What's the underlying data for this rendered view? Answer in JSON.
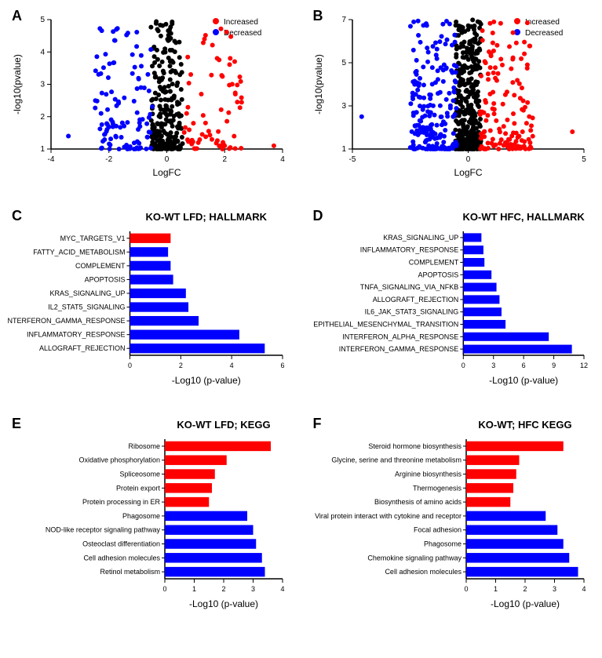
{
  "panels": {
    "A": {
      "label": "A",
      "type": "scatter",
      "xlabel": "LogFC",
      "ylabel": "-log10(pvalue)",
      "xlim": [
        -4,
        4
      ],
      "ylim": [
        1,
        5
      ],
      "xtick_step": 2,
      "ytick_step": 1,
      "marker_size": 3,
      "colors": {
        "increased": "#ff0000",
        "decreased": "#0000ff",
        "ns": "#000000"
      },
      "legend": [
        {
          "label": "Increased",
          "color": "#ff0000"
        },
        {
          "label": "Decreased",
          "color": "#0000ff"
        }
      ],
      "label_fontsize": 12,
      "tick_fontsize": 10
    },
    "B": {
      "label": "B",
      "type": "scatter",
      "xlabel": "LogFC",
      "ylabel": "-log10(pvalue)",
      "xlim": [
        -5,
        5
      ],
      "ylim": [
        1,
        7
      ],
      "xtick_step": 5,
      "ytick_step": 2,
      "marker_size": 3,
      "colors": {
        "increased": "#ff0000",
        "decreased": "#0000ff",
        "ns": "#000000"
      },
      "legend": [
        {
          "label": "Increased",
          "color": "#ff0000"
        },
        {
          "label": "Decreased",
          "color": "#0000ff"
        }
      ],
      "label_fontsize": 12,
      "tick_fontsize": 10
    },
    "C": {
      "label": "C",
      "type": "hbar",
      "title": "KO-WT LFD; HALLMARK",
      "xlabel": "-Log10 (p-value)",
      "xlim": [
        0,
        6
      ],
      "xtick_step": 2,
      "title_fontsize": 13,
      "label_fontsize": 12,
      "tick_fontsize": 9,
      "bar_height": 0.7,
      "categories": [
        "MYC_TARGETS_V1",
        "FATTY_ACID_METABOLISM",
        "COMPLEMENT",
        "APOPTOSIS",
        "KRAS_SIGNALING_UP",
        "IL2_STAT5_SIGNALING",
        "INTERFERON_GAMMA_RESPONSE",
        "INFLAMMATORY_RESPONSE",
        "ALLOGRAFT_REJECTION"
      ],
      "values": [
        1.6,
        1.5,
        1.6,
        1.7,
        2.2,
        2.3,
        2.7,
        4.3,
        5.3
      ],
      "colors": [
        "#ff0000",
        "#0000ff",
        "#0000ff",
        "#0000ff",
        "#0000ff",
        "#0000ff",
        "#0000ff",
        "#0000ff",
        "#0000ff"
      ]
    },
    "D": {
      "label": "D",
      "type": "hbar",
      "title": "KO-WT HFC, HALLMARK",
      "xlabel": "-Log10 (p-value)",
      "xlim": [
        0,
        12
      ],
      "xtick_step": 3,
      "title_fontsize": 13,
      "label_fontsize": 12,
      "tick_fontsize": 9,
      "bar_height": 0.7,
      "categories": [
        "KRAS_SIGNALING_UP",
        "INFLAMMATORY_RESPONSE",
        "COMPLEMENT",
        "APOPTOSIS",
        "TNFA_SIGNALING_VIA_NFKB",
        "ALLOGRAFT_REJECTION",
        "IL6_JAK_STAT3_SIGNALING",
        "EPITHELIAL_MESENCHYMAL_TRANSITION",
        "INTERFERON_ALPHA_RESPONSE",
        "INTERFERON_GAMMA_RESPONSE"
      ],
      "values": [
        1.8,
        2.0,
        2.1,
        2.8,
        3.3,
        3.6,
        3.8,
        4.2,
        8.5,
        10.8
      ],
      "colors": [
        "#0000ff",
        "#0000ff",
        "#0000ff",
        "#0000ff",
        "#0000ff",
        "#0000ff",
        "#0000ff",
        "#0000ff",
        "#0000ff",
        "#0000ff"
      ]
    },
    "E": {
      "label": "E",
      "type": "hbar",
      "title": "KO-WT LFD; KEGG",
      "xlabel": "-Log10 (p-value)",
      "xlim": [
        0,
        4
      ],
      "xtick_step": 1,
      "title_fontsize": 13,
      "label_fontsize": 12,
      "tick_fontsize": 9,
      "bar_height": 0.7,
      "categories": [
        "Ribosome",
        "Oxidative phosphorylation",
        "Spliceosome",
        "Protein export",
        "Protein processing in ER",
        "Phagosome",
        "NOD-like receptor signaling pathway",
        "Osteoclast differentiation",
        "Cell adhesion molecules",
        "Retinol metabolism"
      ],
      "values": [
        3.6,
        2.1,
        1.7,
        1.6,
        1.5,
        2.8,
        3.0,
        3.1,
        3.3,
        3.4
      ],
      "colors": [
        "#ff0000",
        "#ff0000",
        "#ff0000",
        "#ff0000",
        "#ff0000",
        "#0000ff",
        "#0000ff",
        "#0000ff",
        "#0000ff",
        "#0000ff"
      ]
    },
    "F": {
      "label": "F",
      "type": "hbar",
      "title": "KO-WT; HFC KEGG",
      "xlabel": "-Log10 (p-value)",
      "xlim": [
        0,
        4
      ],
      "xtick_step": 1,
      "title_fontsize": 13,
      "label_fontsize": 12,
      "tick_fontsize": 9,
      "bar_height": 0.7,
      "categories": [
        "Steroid hormone biosynthesis",
        "Glycine, serine and threonine metabolism",
        "Arginine biosynthesis",
        "Thermogenesis",
        "Biosynthesis of amino acids",
        "Viral protein interact with cytokine and receptor",
        "Focal adhesion",
        "Phagosome",
        "Chemokine signaling pathway",
        "Cell adhesion molecules"
      ],
      "values": [
        3.3,
        1.8,
        1.7,
        1.6,
        1.5,
        2.7,
        3.1,
        3.3,
        3.5,
        3.8
      ],
      "colors": [
        "#ff0000",
        "#ff0000",
        "#ff0000",
        "#ff0000",
        "#ff0000",
        "#0000ff",
        "#0000ff",
        "#0000ff",
        "#0000ff",
        "#0000ff"
      ]
    }
  },
  "background_color": "#ffffff",
  "axis_color": "#000000"
}
